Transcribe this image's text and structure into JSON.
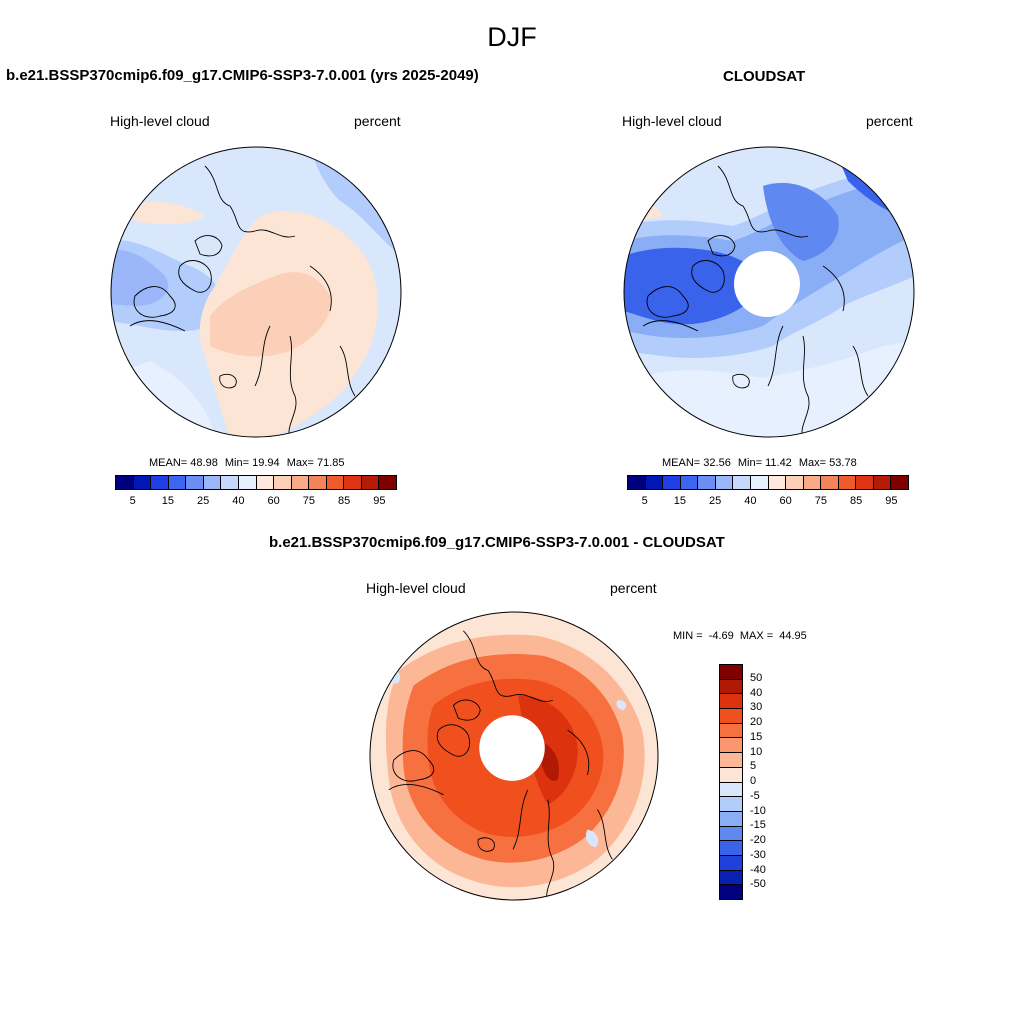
{
  "season": "DJF",
  "panels": {
    "model": {
      "title": "b.e21.BSSP370cmip6.f09_g17.CMIP6-SSP3-7.0.001 (yrs 2025-2049)",
      "variable": "High-level cloud",
      "units": "percent",
      "mean_label": "MEAN=",
      "mean": "48.98",
      "min_label": "Min=",
      "min": "19.94",
      "max_label": "Max=",
      "max": "71.85"
    },
    "obs": {
      "title": "CLOUDSAT",
      "variable": "High-level cloud",
      "units": "percent",
      "mean_label": "MEAN=",
      "mean": "32.56",
      "min_label": "Min=",
      "min": "11.42",
      "max_label": "Max=",
      "max": "53.78"
    },
    "diff": {
      "title": "b.e21.BSSP370cmip6.f09_g17.CMIP6-SSP3-7.0.001 - CLOUDSAT",
      "variable": "High-level cloud",
      "units": "percent",
      "min_label": "MIN =",
      "min": "-4.69",
      "max_label": "MAX =",
      "max": "44.95"
    }
  },
  "colorbar_main": {
    "colors": [
      "#00007f",
      "#0019b2",
      "#1f3ee6",
      "#3d66f0",
      "#6b8ef5",
      "#9bb7fa",
      "#c6d9fc",
      "#e6f0fe",
      "#fee9dc",
      "#fcd0b8",
      "#f9aa86",
      "#f5835a",
      "#ef5a2f",
      "#dc3414",
      "#b31c08",
      "#800000"
    ],
    "tick_labels": [
      "5",
      "15",
      "25",
      "40",
      "60",
      "75",
      "85",
      "95"
    ]
  },
  "colorbar_diff": {
    "colors": [
      "#7f0000",
      "#b01a05",
      "#dc320e",
      "#f0501e",
      "#f77040",
      "#fa9670",
      "#fcb896",
      "#fde5d6",
      "#d9e7fd",
      "#b2cdfb",
      "#89aef6",
      "#5f89f1",
      "#3a63eb",
      "#1f40d9",
      "#0a20b3",
      "#000080"
    ],
    "tick_labels": [
      "50",
      "40",
      "30",
      "20",
      "15",
      "10",
      "5",
      "0",
      "-5",
      "-10",
      "-15",
      "-20",
      "-30",
      "-40",
      "-50"
    ]
  },
  "chart_data": [
    {
      "type": "heatmap",
      "projection": "north polar stereographic",
      "title": "b.e21.BSSP370cmip6.f09_g17.CMIP6-SSP3-7.0.001 (yrs 2025-2049)",
      "variable": "High-level cloud",
      "units": "percent",
      "mean": 48.98,
      "min": 19.94,
      "max": 71.85,
      "levels": [
        5,
        10,
        15,
        20,
        25,
        30,
        40,
        50,
        60,
        65,
        75,
        80,
        85,
        90,
        95
      ]
    },
    {
      "type": "heatmap",
      "projection": "north polar stereographic",
      "title": "CLOUDSAT",
      "variable": "High-level cloud",
      "units": "percent",
      "mean": 32.56,
      "min": 11.42,
      "max": 53.78,
      "levels": [
        5,
        10,
        15,
        20,
        25,
        30,
        40,
        50,
        60,
        65,
        75,
        80,
        85,
        90,
        95
      ]
    },
    {
      "type": "heatmap",
      "projection": "north polar stereographic",
      "title": "b.e21.BSSP370cmip6.f09_g17.CMIP6-SSP3-7.0.001 - CLOUDSAT",
      "variable": "High-level cloud",
      "units": "percent",
      "min": -4.69,
      "max": 44.95,
      "levels": [
        -50,
        -40,
        -30,
        -20,
        -15,
        -10,
        -5,
        0,
        5,
        10,
        15,
        20,
        30,
        40,
        50
      ]
    }
  ]
}
